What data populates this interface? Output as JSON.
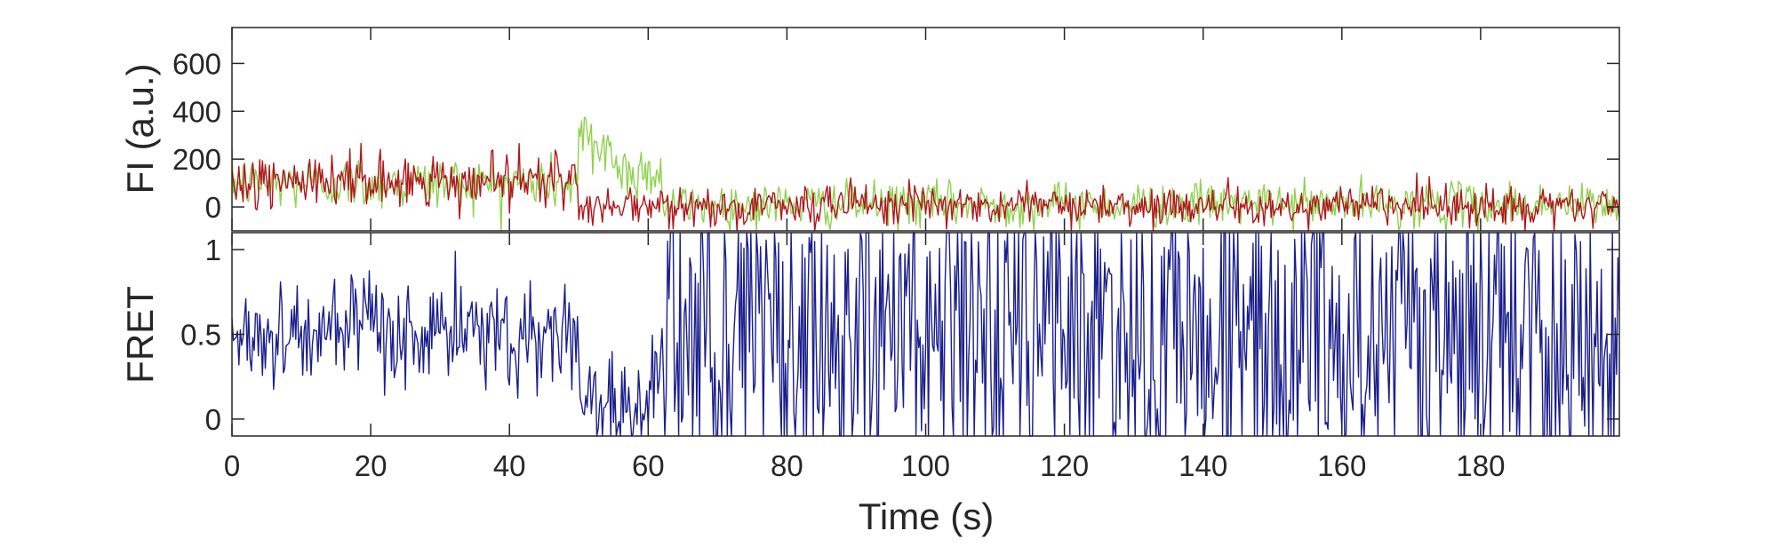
{
  "chart_data": [
    {
      "type": "line",
      "ylabel": "FI (a.u.)",
      "xlabel": "",
      "xlim": [
        0,
        200
      ],
      "ylim": [
        -100,
        750
      ],
      "yticks": [
        0,
        200,
        400,
        600
      ],
      "grid": false,
      "series": [
        {
          "name": "",
          "color": "#8fd14f",
          "x_step": 0.2,
          "segments": [
            {
              "from": 0,
              "to": 50,
              "mean": 100,
              "noise": 55
            },
            {
              "from": 50,
              "to": 55,
              "mean": 260,
              "noise": 80
            },
            {
              "from": 55,
              "to": 62,
              "mean": 150,
              "noise": 60
            },
            {
              "from": 62,
              "to": 200,
              "mean": 10,
              "noise": 45
            }
          ]
        },
        {
          "name": "",
          "color": "#b0161d",
          "x_step": 0.2,
          "segments": [
            {
              "from": 0,
              "to": 50,
              "mean": 105,
              "noise": 55
            },
            {
              "from": 50,
              "to": 200,
              "mean": 5,
              "noise": 40
            }
          ]
        }
      ]
    },
    {
      "type": "line",
      "ylabel": "FRET",
      "xlabel": "Time (s)",
      "xlim": [
        0,
        200
      ],
      "ylim": [
        -0.1,
        1.1
      ],
      "xticks": [
        0,
        20,
        40,
        60,
        80,
        100,
        120,
        140,
        160,
        180
      ],
      "yticks": [
        0,
        0.5,
        1
      ],
      "ytick_labels": [
        "0",
        "0.5",
        "1"
      ],
      "grid": false,
      "series": [
        {
          "name": "",
          "color": "#1a1f8c",
          "x_step": 0.2,
          "segments": [
            {
              "from": 0,
              "to": 50,
              "mean": 0.5,
              "noise": 0.16,
              "clip": [
                -0.1,
                1.1
              ]
            },
            {
              "from": 50,
              "to": 62,
              "mean": 0.1,
              "noise": 0.2,
              "clip": [
                -0.1,
                1.1
              ]
            },
            {
              "from": 62,
              "to": 200,
              "mean": 0.5,
              "noise": 0.6,
              "clip": [
                -0.1,
                1.1
              ]
            }
          ]
        }
      ]
    }
  ]
}
